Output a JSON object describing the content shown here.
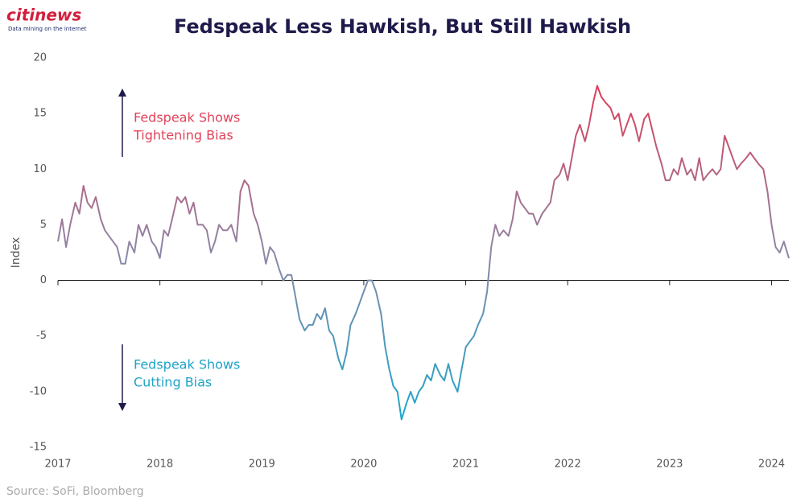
{
  "logo": {
    "name": "citinews",
    "tagline": "Data mining on the internet"
  },
  "chart_data": {
    "type": "line",
    "title": "Fedspeak Less Hawkish, But Still Hawkish",
    "y_label": "Index",
    "source": "Source: SoFi, Bloomberg",
    "annotations": [
      {
        "lines": [
          "Fedspeak Shows",
          "Tightening Bias"
        ],
        "color": "#e0435a"
      },
      {
        "lines": [
          "Fedspeak Shows",
          "Cutting Bias"
        ],
        "color": "#1fa3c7"
      }
    ],
    "gradient_colors": [
      "#e23a55",
      "#8f86a6",
      "#1ca8ca"
    ],
    "xlim": [
      2017,
      2024.17
    ],
    "xticks": [
      2017,
      2018,
      2019,
      2020,
      2021,
      2022,
      2023,
      2024
    ],
    "ylim": [
      -15,
      20
    ],
    "yticks": [
      20,
      15,
      10,
      5,
      0,
      -5,
      -10,
      -15
    ],
    "grid": false,
    "x": [
      2017,
      2017.04,
      2017.08,
      2017.12,
      2017.17,
      2017.21,
      2017.25,
      2017.29,
      2017.33,
      2017.37,
      2017.42,
      2017.46,
      2017.5,
      2017.54,
      2017.58,
      2017.62,
      2017.66,
      2017.7,
      2017.75,
      2017.79,
      2017.83,
      2017.87,
      2017.92,
      2017.96,
      2018,
      2018.04,
      2018.08,
      2018.12,
      2018.17,
      2018.21,
      2018.25,
      2018.29,
      2018.33,
      2018.37,
      2018.42,
      2018.46,
      2018.5,
      2018.54,
      2018.58,
      2018.62,
      2018.66,
      2018.7,
      2018.75,
      2018.79,
      2018.83,
      2018.87,
      2018.92,
      2018.96,
      2019,
      2019.04,
      2019.08,
      2019.12,
      2019.17,
      2019.21,
      2019.25,
      2019.29,
      2019.33,
      2019.37,
      2019.42,
      2019.46,
      2019.5,
      2019.54,
      2019.58,
      2019.62,
      2019.66,
      2019.7,
      2019.75,
      2019.79,
      2019.83,
      2019.87,
      2019.92,
      2019.96,
      2020,
      2020.04,
      2020.08,
      2020.12,
      2020.17,
      2020.21,
      2020.25,
      2020.29,
      2020.33,
      2020.37,
      2020.42,
      2020.46,
      2020.5,
      2020.54,
      2020.58,
      2020.62,
      2020.66,
      2020.7,
      2020.75,
      2020.79,
      2020.83,
      2020.87,
      2020.92,
      2020.96,
      2021,
      2021.04,
      2021.08,
      2021.12,
      2021.17,
      2021.21,
      2021.25,
      2021.29,
      2021.33,
      2021.37,
      2021.42,
      2021.46,
      2021.5,
      2021.54,
      2021.58,
      2021.62,
      2021.66,
      2021.7,
      2021.75,
      2021.79,
      2021.83,
      2021.87,
      2021.92,
      2021.96,
      2022,
      2022.04,
      2022.08,
      2022.12,
      2022.17,
      2022.21,
      2022.25,
      2022.29,
      2022.33,
      2022.37,
      2022.42,
      2022.46,
      2022.5,
      2022.54,
      2022.58,
      2022.62,
      2022.66,
      2022.7,
      2022.75,
      2022.79,
      2022.83,
      2022.87,
      2022.92,
      2022.96,
      2023,
      2023.04,
      2023.08,
      2023.12,
      2023.17,
      2023.21,
      2023.25,
      2023.29,
      2023.33,
      2023.37,
      2023.42,
      2023.46,
      2023.5,
      2023.54,
      2023.58,
      2023.62,
      2023.66,
      2023.7,
      2023.75,
      2023.79,
      2023.83,
      2023.87,
      2023.92,
      2023.96,
      2024,
      2024.04,
      2024.08,
      2024.12,
      2024.17
    ],
    "series": [
      {
        "name": "Fedspeak Index",
        "values": [
          3.5,
          5.5,
          3,
          5,
          7,
          6,
          8.5,
          7,
          6.5,
          7.5,
          5.5,
          4.5,
          4,
          3.5,
          3,
          1.5,
          1.5,
          3.5,
          2.5,
          5,
          4,
          5,
          3.5,
          3,
          2,
          4.5,
          4,
          5.5,
          7.5,
          7,
          7.5,
          6,
          7,
          5,
          5,
          4.5,
          2.5,
          3.5,
          5,
          4.5,
          4.5,
          5,
          3.5,
          8,
          9,
          8.5,
          6,
          5,
          3.5,
          1.5,
          3,
          2.5,
          1,
          0,
          0.5,
          0.5,
          -1.5,
          -3.5,
          -4.5,
          -4,
          -4,
          -3,
          -3.5,
          -2.5,
          -4.5,
          -5,
          -7,
          -8,
          -6.5,
          -4,
          -3,
          -2,
          -1,
          0,
          0,
          -1,
          -3,
          -6,
          -8,
          -9.5,
          -10,
          -12.5,
          -11,
          -10,
          -11,
          -10,
          -9.5,
          -8.5,
          -9,
          -7.5,
          -8.5,
          -9,
          -7.5,
          -9,
          -10,
          -8,
          -6,
          -5.5,
          -5,
          -4,
          -3,
          -1,
          3,
          5,
          4,
          4.5,
          4,
          5.5,
          8,
          7,
          6.5,
          6,
          6,
          5,
          6,
          6.5,
          7,
          9,
          9.5,
          10.5,
          9,
          11,
          13,
          14,
          12.5,
          14,
          16,
          17.5,
          16.5,
          16,
          15.5,
          14.5,
          15,
          13,
          14,
          15,
          14,
          12.5,
          14.5,
          15,
          13.5,
          12,
          10.5,
          9,
          9,
          10,
          9.5,
          11,
          9.5,
          10,
          9,
          11,
          9,
          9.5,
          10,
          9.5,
          10,
          13,
          12,
          11,
          10,
          10.5,
          11,
          11.5,
          11,
          10.5,
          10,
          8,
          5,
          3,
          2.5,
          3.5,
          2
        ]
      }
    ]
  }
}
